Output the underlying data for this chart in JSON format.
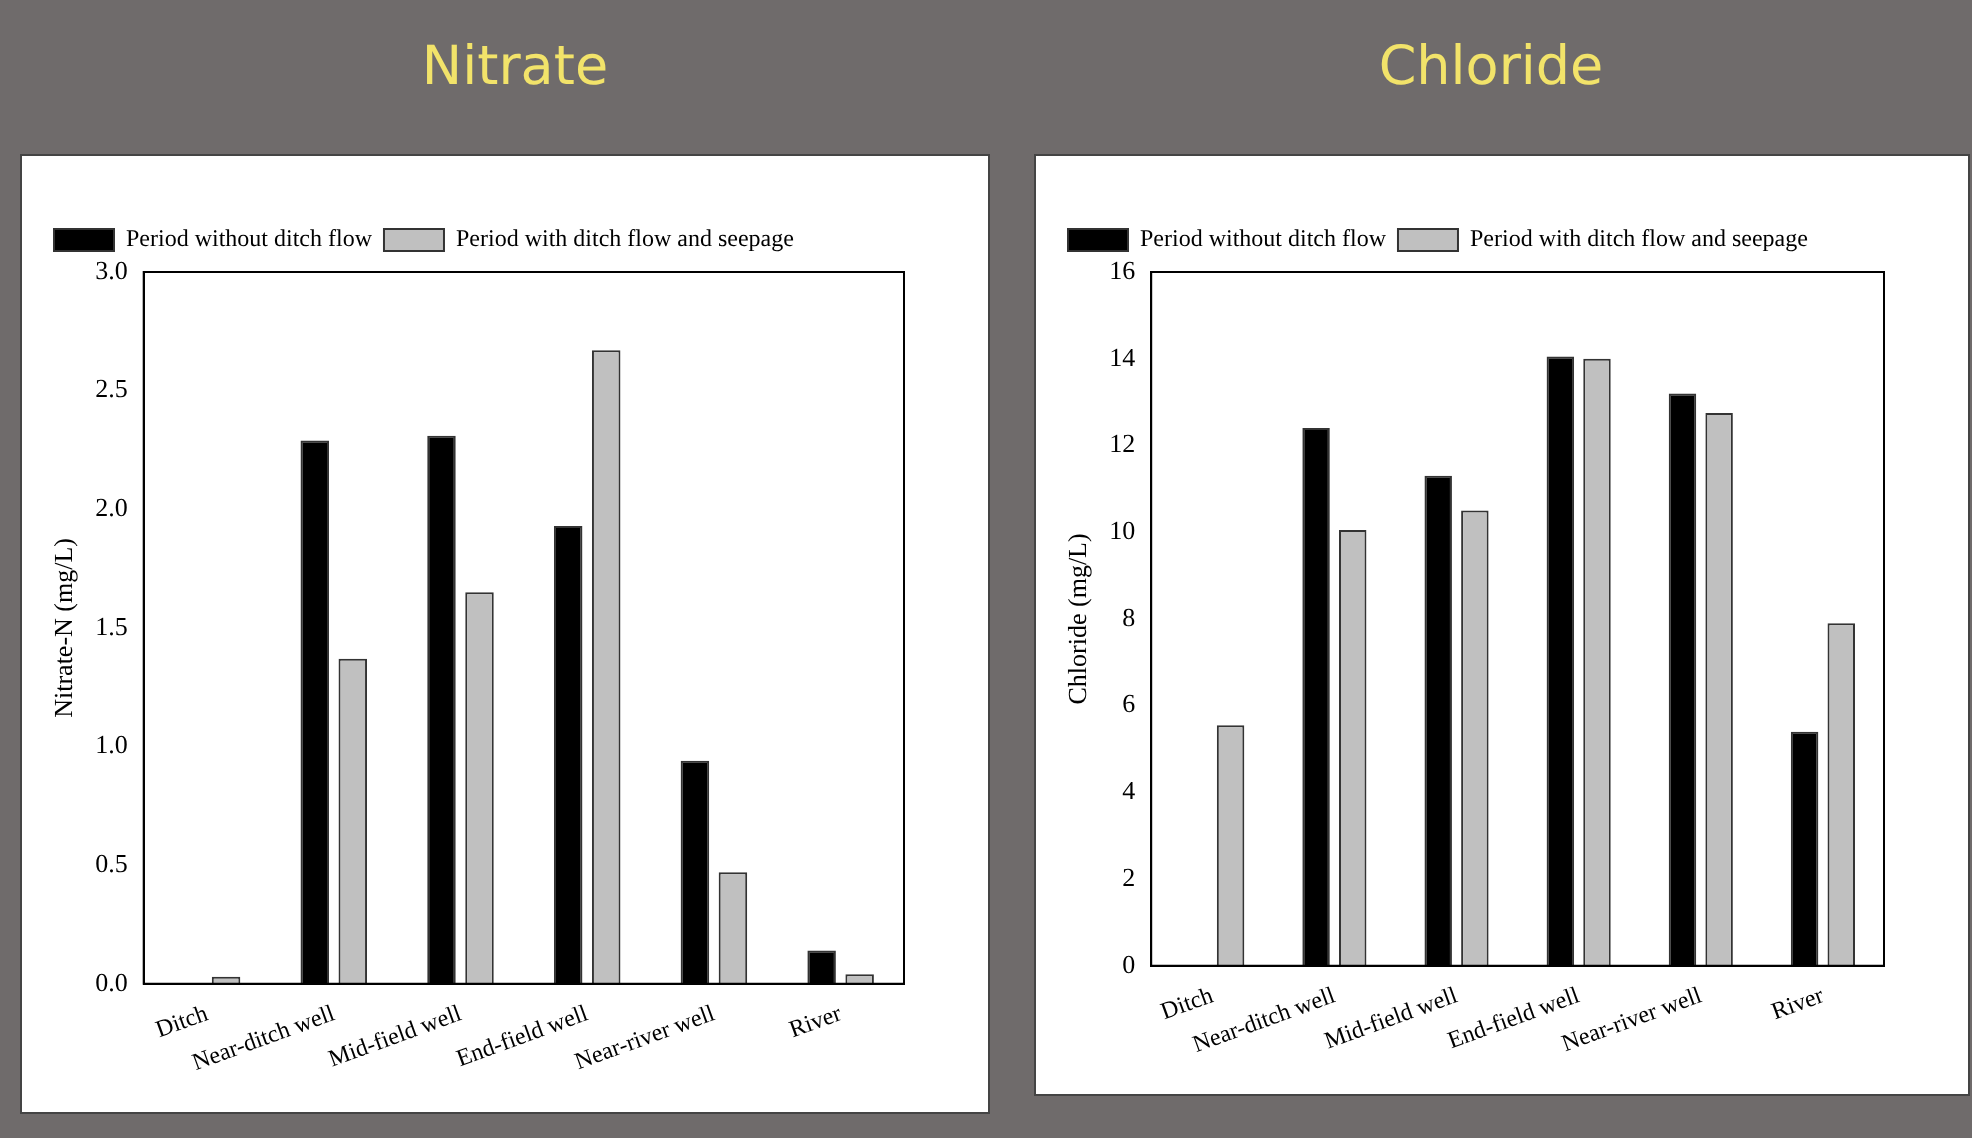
{
  "chart_data": [
    {
      "type": "bar",
      "title": "Nitrate",
      "ylabel": "Nitrate-N (mg/L)",
      "categories": [
        "Ditch",
        "Near-ditch well",
        "Mid-field well",
        "End-field well",
        "Near-river well",
        "River"
      ],
      "series": [
        {
          "name": "Period without ditch flow",
          "color": "#000000",
          "values": [
            null,
            2.29,
            2.31,
            1.93,
            0.94,
            0.14
          ]
        },
        {
          "name": "Period with ditch flow and seepage",
          "color": "#c0c0c0",
          "values": [
            0.03,
            1.37,
            1.65,
            2.67,
            0.47,
            0.04
          ]
        }
      ],
      "ylim": [
        0,
        3
      ],
      "yticks": [
        {
          "value": 0,
          "label": "0.0"
        },
        {
          "value": 0.5,
          "label": "0.5"
        },
        {
          "value": 1,
          "label": "1.0"
        },
        {
          "value": 1.5,
          "label": "1.5"
        },
        {
          "value": 2,
          "label": "2.0"
        },
        {
          "value": 2.5,
          "label": "2.5"
        },
        {
          "value": 3,
          "label": "3.0"
        }
      ],
      "grid": false,
      "legend": "top left"
    },
    {
      "type": "bar",
      "title": "Chloride",
      "ylabel": "Chloride (mg/L)",
      "categories": [
        "Ditch",
        "Near-ditch well",
        "Mid-field well",
        "End-field well",
        "Near-river well",
        "River"
      ],
      "series": [
        {
          "name": "Period without ditch flow",
          "color": "#000000",
          "values": [
            null,
            12.4,
            11.3,
            14.05,
            13.2,
            5.4
          ]
        },
        {
          "name": "Period with ditch flow and seepage",
          "color": "#c0c0c0",
          "values": [
            5.55,
            10.05,
            10.5,
            14.0,
            12.75,
            7.9
          ]
        }
      ],
      "ylim": [
        0,
        16
      ],
      "yticks": [
        0,
        2,
        4,
        6,
        8,
        10,
        12,
        14,
        16
      ],
      "grid": false,
      "legend": "top left"
    }
  ]
}
